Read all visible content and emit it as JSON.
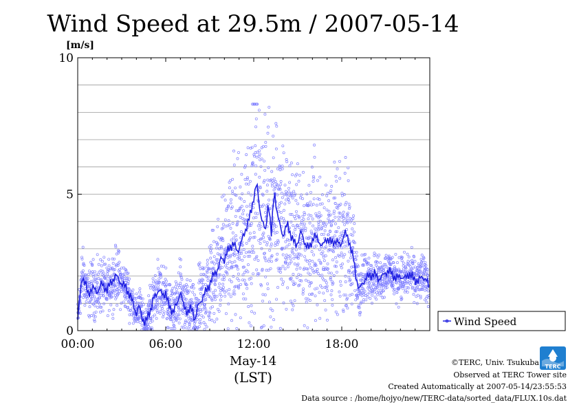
{
  "chart_data": {
    "type": "scatter",
    "title": "Wind Speed at 29.5m / 2007-05-14",
    "ylabel": "[m/s]",
    "xlabel_date": "May-14",
    "xlabel_unit": "(LST)",
    "ylim": [
      0,
      10
    ],
    "xlim_hours": [
      0,
      24
    ],
    "yticks": [
      {
        "value": 0,
        "label": "0"
      },
      {
        "value": 5,
        "label": "5"
      },
      {
        "value": 10,
        "label": "10"
      }
    ],
    "xticks": [
      {
        "hour": 0,
        "label": "00:00"
      },
      {
        "hour": 6,
        "label": "06:00"
      },
      {
        "hour": 12,
        "label": "12:00"
      },
      {
        "hour": 18,
        "label": "18:00"
      }
    ],
    "grid": true,
    "legend_position": "right",
    "series": [
      {
        "name": "Wind Speed",
        "color": "#2020e0",
        "hour": [
          0,
          0.15,
          0.3,
          0.5,
          0.7,
          1.0,
          1.3,
          1.6,
          2.0,
          2.3,
          2.6,
          2.8,
          3.0,
          3.3,
          3.6,
          3.8,
          4.0,
          4.2,
          4.4,
          4.6,
          4.8,
          5.0,
          5.2,
          5.5,
          5.8,
          6.0,
          6.2,
          6.5,
          6.8,
          7.0,
          7.2,
          7.5,
          7.8,
          8.0,
          8.2,
          8.5,
          8.8,
          9.0,
          9.3,
          9.6,
          9.8,
          10.0,
          10.3,
          10.6,
          10.9,
          11.2,
          11.5,
          11.8,
          12.0,
          12.2,
          12.4,
          12.6,
          12.8,
          13.0,
          13.2,
          13.4,
          13.6,
          13.8,
          14.0,
          14.3,
          14.6,
          14.9,
          15.2,
          15.5,
          15.8,
          16.1,
          16.4,
          16.7,
          17.0,
          17.3,
          17.6,
          17.9,
          18.2,
          18.5,
          18.8,
          19.0,
          19.2,
          19.4,
          19.6,
          19.9,
          20.2,
          20.5,
          20.8,
          21.1,
          21.4,
          21.7,
          22.0,
          22.3,
          22.6,
          22.9,
          23.2,
          23.5,
          23.8,
          23.95
        ],
        "values": [
          0.4,
          1.2,
          2.0,
          1.8,
          1.3,
          1.6,
          1.4,
          1.7,
          1.5,
          1.8,
          2.0,
          1.9,
          1.7,
          1.6,
          1.2,
          1.0,
          0.6,
          0.9,
          0.5,
          0.2,
          0.6,
          0.8,
          1.2,
          1.5,
          1.3,
          1.4,
          0.9,
          0.7,
          1.0,
          1.5,
          0.9,
          0.7,
          0.8,
          0.4,
          0.9,
          1.2,
          1.5,
          1.7,
          2.1,
          2.3,
          2.7,
          2.6,
          3.0,
          3.2,
          2.9,
          3.3,
          3.8,
          4.3,
          4.9,
          5.4,
          4.5,
          4.0,
          3.6,
          4.8,
          3.5,
          5.2,
          4.3,
          3.8,
          3.5,
          3.9,
          3.4,
          3.1,
          3.6,
          3.2,
          3.0,
          3.5,
          3.3,
          3.1,
          3.4,
          3.2,
          3.3,
          3.1,
          3.6,
          3.3,
          2.6,
          1.9,
          1.5,
          1.7,
          1.9,
          2.0,
          2.1,
          1.9,
          2.0,
          2.2,
          2.1,
          1.9,
          2.0,
          1.9,
          2.1,
          1.9,
          1.8,
          2.0,
          1.8,
          1.6
        ],
        "scatter_spread": [
          0.3,
          0.4,
          0.5,
          0.5,
          0.4,
          0.5,
          0.5,
          0.5,
          0.4,
          0.5,
          0.5,
          0.5,
          0.4,
          0.4,
          0.4,
          0.3,
          0.3,
          0.4,
          0.3,
          0.3,
          0.4,
          0.4,
          0.5,
          0.5,
          0.5,
          0.5,
          0.5,
          0.4,
          0.5,
          0.6,
          0.5,
          0.5,
          0.5,
          0.4,
          0.6,
          0.7,
          0.8,
          0.8,
          0.9,
          1.0,
          1.1,
          1.1,
          1.2,
          1.3,
          1.4,
          1.5,
          1.7,
          1.9,
          2.0,
          2.0,
          1.9,
          1.8,
          1.7,
          1.8,
          1.7,
          1.8,
          1.7,
          1.6,
          1.5,
          1.5,
          1.4,
          1.3,
          1.4,
          1.3,
          1.3,
          1.4,
          1.3,
          1.2,
          1.3,
          1.2,
          1.2,
          1.1,
          1.2,
          1.1,
          0.8,
          0.6,
          0.5,
          0.5,
          0.5,
          0.4,
          0.4,
          0.4,
          0.4,
          0.4,
          0.4,
          0.4,
          0.4,
          0.4,
          0.4,
          0.4,
          0.4,
          0.4,
          0.4,
          0.3
        ]
      }
    ]
  },
  "credits": {
    "copyright": "©TERC, Univ. Tsukuba",
    "observed": "Observed at TERC Tower site",
    "created": "Created Automatically at 2007-05-14/23:55:53",
    "source": "Data source : /home/hojyo/new/TERC-data/sorted_data/FLUX.10s.dat"
  },
  "logo": {
    "text": "TERC",
    "color": "#1f7fd0"
  }
}
